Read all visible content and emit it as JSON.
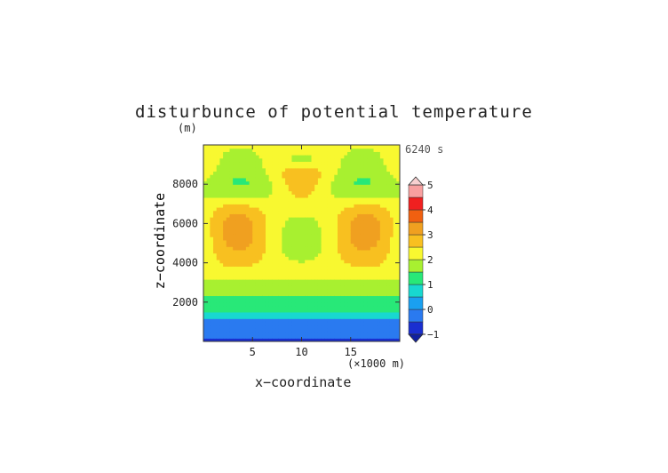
{
  "chart_data": {
    "type": "heatmap",
    "title": "disturbunce of potential temperature",
    "unit_label": "(m)",
    "time_label": "6240 s",
    "xlabel": "x−coordinate",
    "ylabel": "z−coordinate",
    "x_unit_label": "(×1000 m)",
    "x_ticks": [
      {
        "value": 5,
        "label": "5"
      },
      {
        "value": 10,
        "label": "10"
      },
      {
        "value": 15,
        "label": "15"
      }
    ],
    "y_ticks": [
      {
        "value": 2000,
        "label": "2000"
      },
      {
        "value": 4000,
        "label": "4000"
      },
      {
        "value": 6000,
        "label": "6000"
      },
      {
        "value": 8000,
        "label": "8000"
      }
    ],
    "xlim": [
      0,
      20
    ],
    "ylim": [
      0,
      10000
    ],
    "colorbar": {
      "range": [
        -1,
        5
      ],
      "ticks": [
        {
          "value": -1,
          "label": "−1"
        },
        {
          "value": 0,
          "label": "0"
        },
        {
          "value": 1,
          "label": "1"
        },
        {
          "value": 2,
          "label": "2"
        },
        {
          "value": 3,
          "label": "3"
        },
        {
          "value": 4,
          "label": "4"
        },
        {
          "value": 5,
          "label": "5"
        }
      ],
      "levels": [
        {
          "from": -1.0,
          "to": -0.5,
          "color": "#1a2fd0"
        },
        {
          "from": -0.5,
          "to": 0.0,
          "color": "#2a7af0"
        },
        {
          "from": 0.0,
          "to": 0.5,
          "color": "#1aa0f0"
        },
        {
          "from": 0.5,
          "to": 1.0,
          "color": "#18d8d0"
        },
        {
          "from": 1.0,
          "to": 1.5,
          "color": "#28e878"
        },
        {
          "from": 1.5,
          "to": 2.0,
          "color": "#a8f030"
        },
        {
          "from": 2.0,
          "to": 2.5,
          "color": "#f8f830"
        },
        {
          "from": 2.5,
          "to": 3.0,
          "color": "#f8c020"
        },
        {
          "from": 3.0,
          "to": 3.5,
          "color": "#f0a020"
        },
        {
          "from": 3.5,
          "to": 4.0,
          "color": "#f06010"
        },
        {
          "from": 4.0,
          "to": 4.5,
          "color": "#f02020"
        },
        {
          "from": 4.5,
          "to": 5.0,
          "color": "#f8a0a0"
        }
      ],
      "over_color": "#f8d0d0",
      "under_color": "#1020a0"
    }
  }
}
